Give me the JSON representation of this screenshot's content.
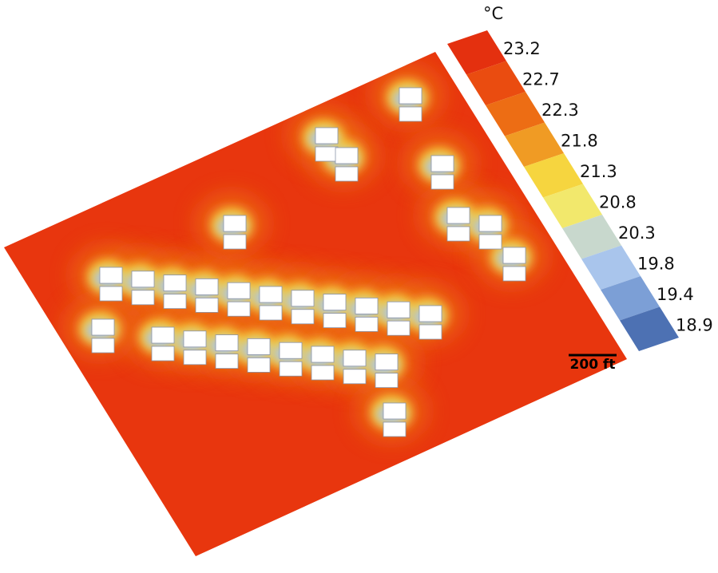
{
  "legend": {
    "unit": "°C",
    "items": [
      {
        "label": "23.2",
        "color": "#e4300f"
      },
      {
        "label": "22.7",
        "color": "#ea4c10"
      },
      {
        "label": "22.3",
        "color": "#ed6d14"
      },
      {
        "label": "21.8",
        "color": "#f09b24"
      },
      {
        "label": "21.3",
        "color": "#f6d53f"
      },
      {
        "label": "20.8",
        "color": "#f2e86c"
      },
      {
        "label": "20.3",
        "color": "#c8d8cd"
      },
      {
        "label": "19.8",
        "color": "#a9c5ec"
      },
      {
        "label": "19.4",
        "color": "#7c9fd6"
      },
      {
        "label": "18.9",
        "color": "#4d71b3"
      }
    ]
  },
  "map": {
    "scale_bar": "200 ft"
  }
}
